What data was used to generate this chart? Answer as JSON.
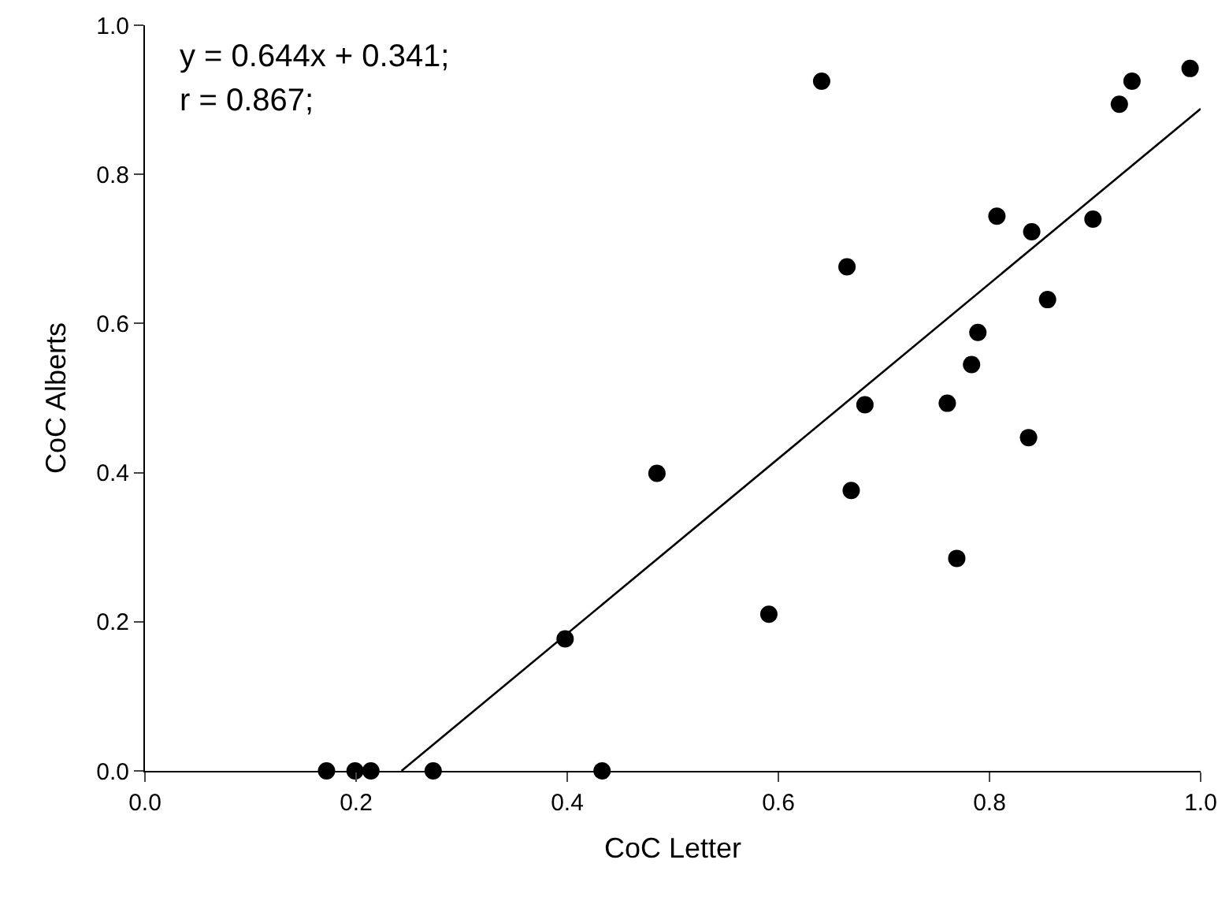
{
  "chart_data": {
    "type": "scatter",
    "xlabel": "CoC Letter",
    "ylabel": "CoC Alberts",
    "annotations": [
      "y = 0.644x + 0.341;",
      "r = 0.867;"
    ],
    "xlim": [
      0,
      1
    ],
    "ylim": [
      0,
      1
    ],
    "xticks": [
      {
        "value": 0,
        "label": "0.0"
      },
      0.2,
      0.4,
      0.6,
      0.8,
      {
        "value": 1,
        "label": "1.0"
      }
    ],
    "yticks": [
      {
        "value": 0,
        "label": "0.0"
      },
      0.2,
      0.4,
      0.6,
      0.8,
      {
        "value": 1,
        "label": "1.0"
      }
    ],
    "grid": false,
    "series": [
      {
        "marker": "circle",
        "color": "#000000",
        "x": [
          0.172,
          0.199,
          0.214,
          0.273,
          0.433,
          0.398,
          0.485,
          0.591,
          0.641,
          0.665,
          0.669,
          0.682,
          0.76,
          0.769,
          0.783,
          0.789,
          0.807,
          0.837,
          0.84,
          0.855,
          0.898,
          0.923,
          0.935,
          0.99
        ],
        "values": [
          0,
          0,
          0,
          0,
          0,
          0.177,
          0.399,
          0.21,
          0.925,
          0.676,
          0.376,
          0.491,
          0.493,
          0.285,
          0.545,
          0.588,
          0.744,
          0.447,
          0.723,
          0.632,
          0.74,
          0.894,
          0.925,
          0.942
        ]
      },
      {
        "type": "line",
        "marker": "none",
        "color": "#000000",
        "line_style": "solid",
        "x": [
          0.243,
          1.0
        ],
        "values": [
          0,
          0.888
        ]
      }
    ]
  }
}
